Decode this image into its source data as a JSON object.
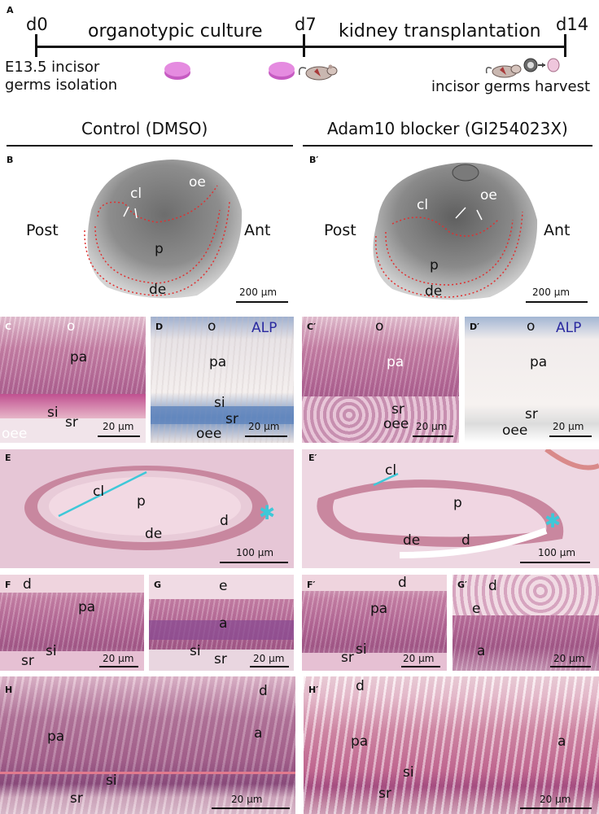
{
  "timeline": {
    "panel_letter": "A",
    "d0": "d0",
    "d7": "d7",
    "d14": "d14",
    "stage1": "organotypic culture",
    "stage2": "kidney transplantation",
    "note_left_line1": "E13.5 incisor",
    "note_left_line2": "germs isolation",
    "note_right": "incisor germs harvest"
  },
  "headers": {
    "control": "Control (DMSO)",
    "blocker": "Adam10 blocker (GI254023X)"
  },
  "panel_B": {
    "letter": "B",
    "post": "Post",
    "ant": "Ant",
    "oe": "oe",
    "cl": "cl",
    "p": "p",
    "de": "de",
    "scale": "200 μm"
  },
  "panel_B2": {
    "letter": "B′",
    "post": "Post",
    "ant": "Ant",
    "oe": "oe",
    "cl": "cl",
    "p": "p",
    "de": "de",
    "scale": "200 μm"
  },
  "panel_C": {
    "letter": "C",
    "o": "o",
    "pa": "pa",
    "si": "si",
    "sr": "sr",
    "oee": "oee",
    "scale": "20 μm"
  },
  "panel_D": {
    "letter": "D",
    "o": "o",
    "alp": "ALP",
    "pa": "pa",
    "si": "si",
    "sr": "sr",
    "oee": "oee",
    "scale": "20 μm"
  },
  "panel_C2": {
    "letter": "C′",
    "o": "o",
    "pa": "pa",
    "sr": "sr",
    "oee": "oee",
    "scale": "20 μm"
  },
  "panel_D2": {
    "letter": "D′",
    "o": "o",
    "alp": "ALP",
    "pa": "pa",
    "sr": "sr",
    "oee": "oee",
    "scale": "20 μm"
  },
  "panel_E": {
    "letter": "E",
    "cl": "cl",
    "p": "p",
    "d": "d",
    "de": "de",
    "star": "*",
    "scale": "100 μm"
  },
  "panel_E2": {
    "letter": "E′",
    "cl": "cl",
    "p": "p",
    "d": "d",
    "de": "de",
    "star": "*",
    "scale": "100 μm"
  },
  "panel_F": {
    "letter": "F",
    "d": "d",
    "pa": "pa",
    "si": "si",
    "sr": "sr",
    "scale": "20 μm"
  },
  "panel_G": {
    "letter": "G",
    "e": "e",
    "a": "a",
    "si": "si",
    "sr": "sr",
    "scale": "20 μm"
  },
  "panel_F2": {
    "letter": "F′",
    "d": "d",
    "pa": "pa",
    "si": "si",
    "sr": "sr",
    "scale": "20 μm"
  },
  "panel_G2": {
    "letter": "G′",
    "d": "d",
    "e": "e",
    "a": "a",
    "scale": "20 μm"
  },
  "panel_H": {
    "letter": "H",
    "d": "d",
    "pa": "pa",
    "a": "a",
    "si": "si",
    "sr": "sr",
    "scale": "20 μm"
  },
  "panel_H2": {
    "letter": "H′",
    "d": "d",
    "pa": "pa",
    "a": "a",
    "si": "si",
    "sr": "sr",
    "scale": "20 μm"
  },
  "colors": {
    "he_stain": "#b36896",
    "alp_stain": "#6f8fbf",
    "cl_marker": "#3ec8d8",
    "dashed_outline": "#e03030"
  }
}
